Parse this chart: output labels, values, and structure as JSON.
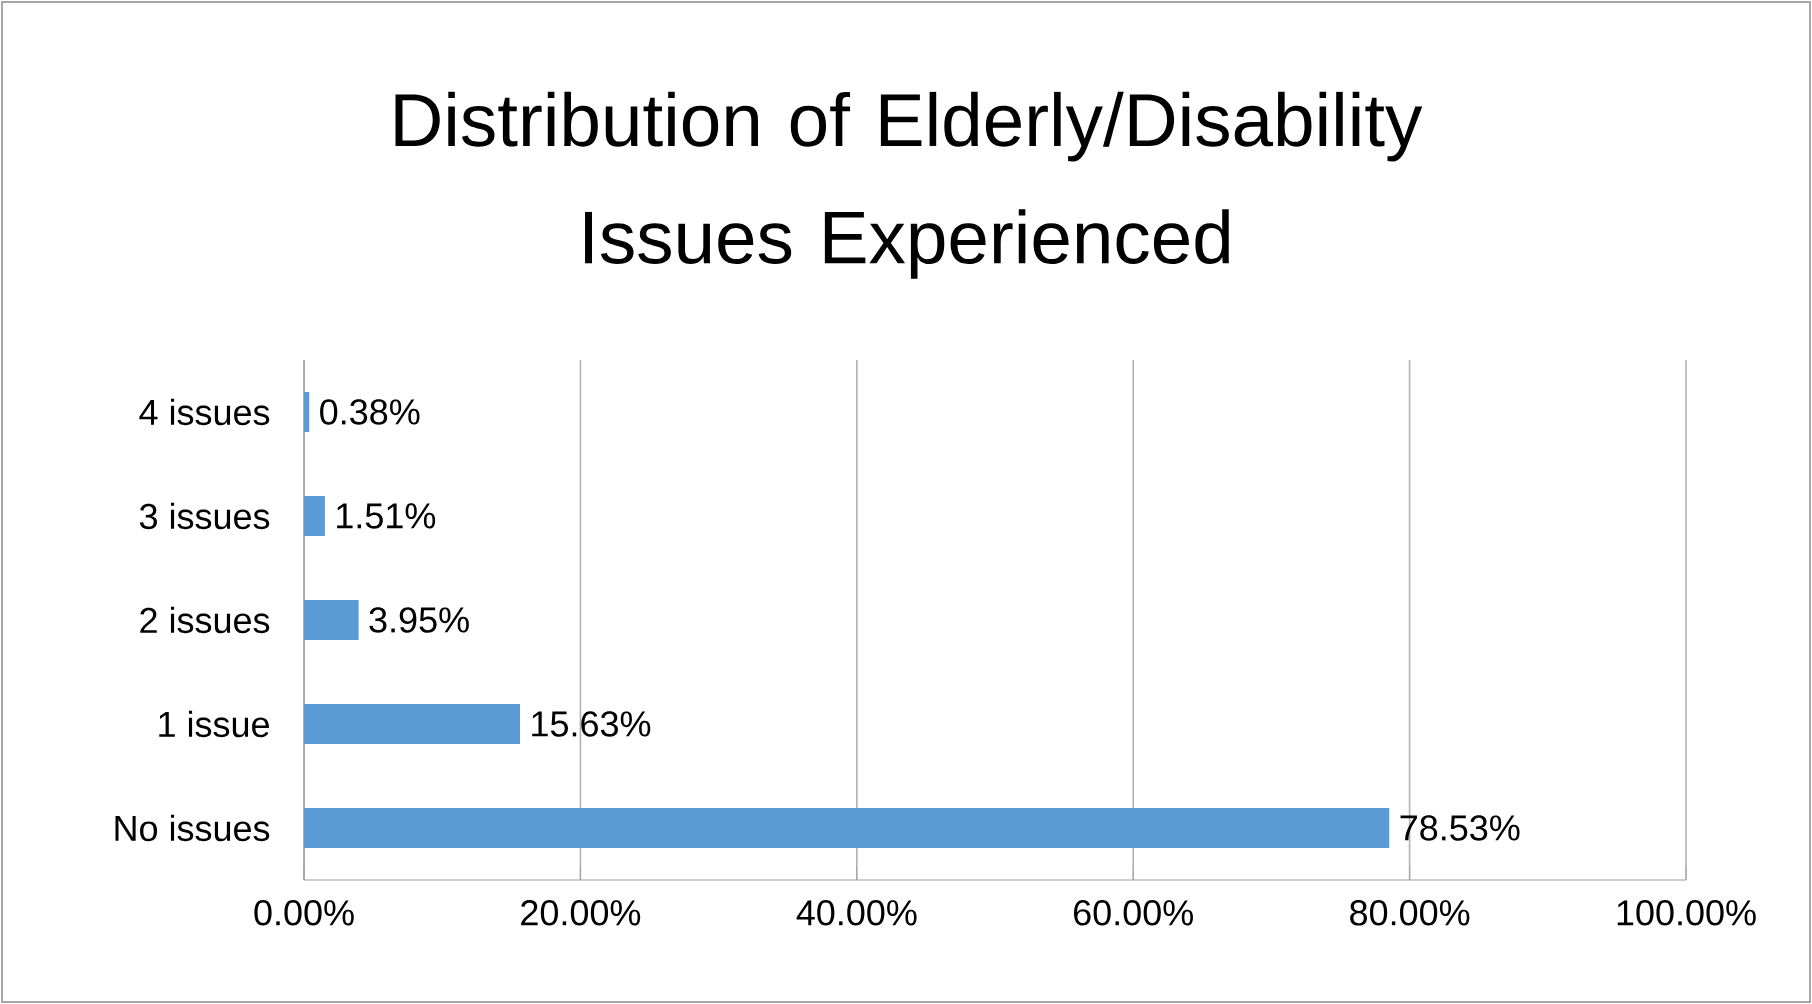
{
  "chart_data": {
    "type": "bar",
    "orientation": "horizontal",
    "title": "Distribution of Elderly/Disability Issues Experienced",
    "categories": [
      "4 issues",
      "3 issues",
      "2 issues",
      "1 issue",
      "No issues"
    ],
    "values": [
      0.38,
      1.51,
      3.95,
      15.63,
      78.53
    ],
    "value_labels": [
      "0.38%",
      "1.51%",
      "3.95%",
      "15.63%",
      "78.53%"
    ],
    "color": "#5b9bd5",
    "xlim": [
      0,
      100
    ],
    "xticks": [
      {
        "value": 0,
        "label": "0.00%"
      },
      {
        "value": 20,
        "label": "20.00%"
      },
      {
        "value": 40,
        "label": "40.00%"
      },
      {
        "value": 60,
        "label": "60.00%"
      },
      {
        "value": 80,
        "label": "80.00%"
      },
      {
        "value": 100,
        "label": "100.00%"
      }
    ],
    "grid": "x"
  }
}
